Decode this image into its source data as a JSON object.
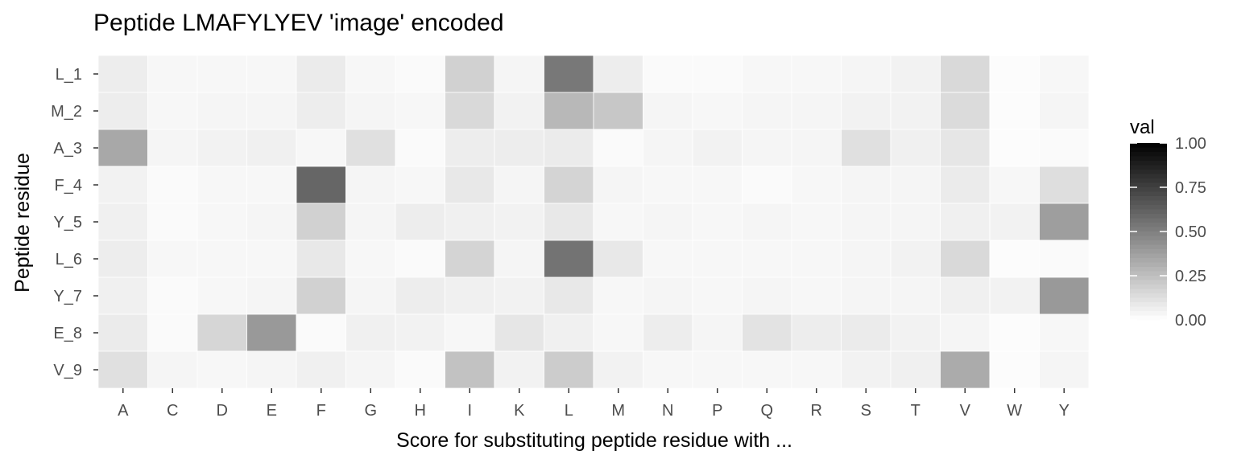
{
  "chart_data": {
    "type": "heatmap",
    "title": "Peptide LMAFYLYEV 'image' encoded",
    "xlabel": "Score for substituting peptide residue with ...",
    "ylabel": "Peptide residue",
    "x_categories": [
      "A",
      "C",
      "D",
      "E",
      "F",
      "G",
      "H",
      "I",
      "K",
      "L",
      "M",
      "N",
      "P",
      "Q",
      "R",
      "S",
      "T",
      "V",
      "W",
      "Y"
    ],
    "y_categories": [
      "L_1",
      "M_2",
      "A_3",
      "F_4",
      "Y_5",
      "L_6",
      "Y_7",
      "E_8",
      "V_9"
    ],
    "values": [
      [
        0.07,
        0.03,
        0.03,
        0.03,
        0.08,
        0.03,
        0.02,
        0.18,
        0.04,
        0.53,
        0.07,
        0.02,
        0.02,
        0.03,
        0.03,
        0.04,
        0.05,
        0.15,
        0.01,
        0.03
      ],
      [
        0.07,
        0.03,
        0.04,
        0.04,
        0.07,
        0.04,
        0.03,
        0.15,
        0.05,
        0.28,
        0.22,
        0.04,
        0.03,
        0.04,
        0.04,
        0.05,
        0.05,
        0.14,
        0.01,
        0.04
      ],
      [
        0.34,
        0.04,
        0.05,
        0.06,
        0.03,
        0.12,
        0.02,
        0.07,
        0.07,
        0.08,
        0.02,
        0.04,
        0.05,
        0.04,
        0.04,
        0.12,
        0.06,
        0.1,
        0.01,
        0.02
      ],
      [
        0.05,
        0.02,
        0.03,
        0.03,
        0.6,
        0.04,
        0.03,
        0.09,
        0.04,
        0.17,
        0.04,
        0.03,
        0.03,
        0.02,
        0.03,
        0.04,
        0.04,
        0.08,
        0.03,
        0.13
      ],
      [
        0.06,
        0.02,
        0.03,
        0.04,
        0.18,
        0.04,
        0.07,
        0.06,
        0.05,
        0.09,
        0.03,
        0.04,
        0.03,
        0.04,
        0.03,
        0.04,
        0.04,
        0.06,
        0.05,
        0.38
      ],
      [
        0.07,
        0.03,
        0.03,
        0.03,
        0.09,
        0.03,
        0.02,
        0.17,
        0.04,
        0.55,
        0.09,
        0.03,
        0.03,
        0.03,
        0.03,
        0.04,
        0.05,
        0.15,
        0.01,
        0.02
      ],
      [
        0.06,
        0.02,
        0.03,
        0.04,
        0.18,
        0.04,
        0.07,
        0.06,
        0.05,
        0.09,
        0.03,
        0.04,
        0.03,
        0.04,
        0.03,
        0.04,
        0.04,
        0.06,
        0.05,
        0.4
      ],
      [
        0.08,
        0.02,
        0.16,
        0.4,
        0.02,
        0.06,
        0.05,
        0.03,
        0.1,
        0.06,
        0.03,
        0.07,
        0.04,
        0.11,
        0.07,
        0.08,
        0.05,
        0.04,
        0.01,
        0.03
      ],
      [
        0.12,
        0.04,
        0.03,
        0.04,
        0.06,
        0.04,
        0.02,
        0.24,
        0.05,
        0.2,
        0.05,
        0.03,
        0.03,
        0.03,
        0.03,
        0.05,
        0.06,
        0.33,
        0.01,
        0.04
      ]
    ],
    "legend": {
      "title": "val",
      "ticks": [
        "0.00",
        "0.25",
        "0.50",
        "0.75",
        "1.00"
      ],
      "tick_values": [
        0,
        0.25,
        0.5,
        0.75,
        1.0
      ],
      "range": [
        0,
        1
      ],
      "low_color": "#ffffff",
      "high_color": "#000000"
    },
    "grid": false,
    "legend_position": "right"
  }
}
